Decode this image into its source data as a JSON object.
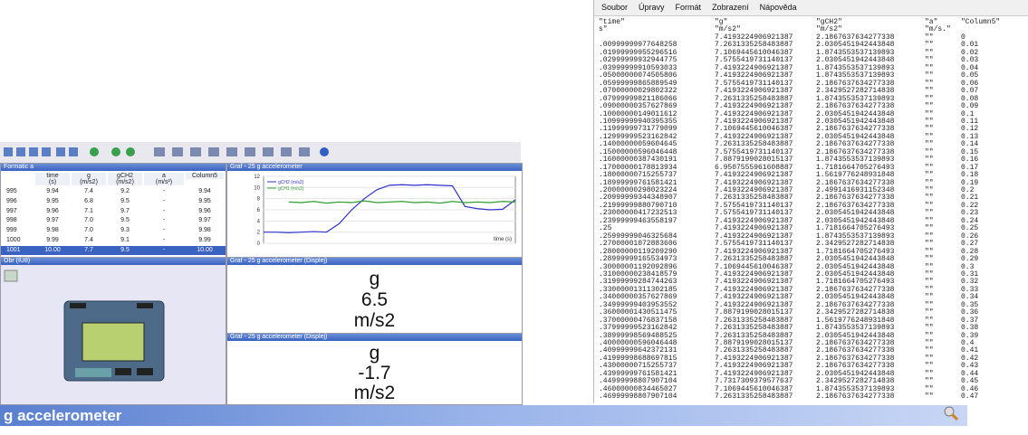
{
  "editor": {
    "menu": [
      "Soubor",
      "Úpravy",
      "Formát",
      "Zobrazení",
      "Nápověda"
    ],
    "header": [
      "\"time\"",
      "\"g\"",
      "\"gCH2\"",
      "\"a\"",
      "\"Column5\""
    ],
    "units": [
      "s\"",
      "\"m/s2\"",
      "\"m/s2\"",
      "\"m/s.\"",
      ""
    ],
    "rows": [
      [
        "",
        "7.4193224906921387",
        "2.1867637634277338",
        "\"\"",
        "0"
      ],
      [
        ".00999999977648258",
        "7.2631335258483887",
        "2.0305451942443848",
        "\"\"",
        "0.01"
      ],
      [
        ".01999999955296516",
        "7.1069445610046387",
        "1.8743553537139893",
        "\"\"",
        "0.02"
      ],
      [
        ".02999999932944775",
        "7.5755419731140137",
        "2.0305451942443848",
        "\"\"",
        "0.03"
      ],
      [
        ".03999999910593033",
        "7.4193224906921387",
        "1.8743553537139893",
        "\"\"",
        "0.04"
      ],
      [
        ".05000000074505806",
        "7.4193224906921387",
        "1.8743553537139893",
        "\"\"",
        "0.05"
      ],
      [
        ".05999999865889549",
        "7.5755419731140137",
        "2.1867637634277338",
        "\"\"",
        "0.06"
      ],
      [
        ".07000000029802322",
        "7.4193224906921387",
        "2.3429527282714838",
        "\"\"",
        "0.07"
      ],
      [
        ".07999999821186066",
        "7.2631335258483887",
        "1.8743553537139893",
        "\"\"",
        "0.08"
      ],
      [
        ".09000000357627869",
        "7.4193224906921387",
        "2.1867637634277338",
        "\"\"",
        "0.09"
      ],
      [
        ".10000000149011612",
        "7.4193224906921387",
        "2.0305451942443848",
        "\"\"",
        "0.1"
      ],
      [
        ".10999999940395355",
        "7.4193224906921387",
        "2.0305451942443848",
        "\"\"",
        "0.11"
      ],
      [
        ".11999999731779099",
        "7.1069445610046387",
        "2.1867637634277338",
        "\"\"",
        "0.12"
      ],
      [
        ".12999999523162842",
        "7.4193224906921387",
        "2.0305451942443848",
        "\"\"",
        "0.13"
      ],
      [
        ".14000000059604645",
        "7.2631335258483887",
        "2.1867637634277338",
        "\"\"",
        "0.14"
      ],
      [
        ".15000000596046448",
        "7.5755419731140137",
        "2.1867637634277338",
        "\"\"",
        "0.15"
      ],
      [
        ".16000000387430191",
        "7.8879199028015137",
        "1.8743553537139893",
        "\"\"",
        "0.16"
      ],
      [
        ".17000000178813934",
        "6.9507555961608887",
        "1.7181664705276493",
        "\"\"",
        "0.17"
      ],
      [
        ".18000000715255737",
        "7.4193224906921387",
        "1.5619776248931848",
        "\"\"",
        "0.18"
      ],
      [
        ".18999999761581421",
        "7.4193224906921387",
        "2.1867637634277338",
        "\"\"",
        "0.19"
      ],
      [
        ".20000000298023224",
        "7.4193224906921387",
        "2.4991416931152348",
        "\"\"",
        "0.2"
      ],
      [
        ".20999999344348907",
        "7.2631335258483887",
        "2.1867637634277338",
        "\"\"",
        "0.21"
      ],
      [
        ".21999999880790710",
        "7.5755419731140137",
        "2.1867637634277338",
        "\"\"",
        "0.22"
      ],
      [
        ".23000000417232513",
        "7.5755419731140137",
        "2.0305451942443848",
        "\"\"",
        "0.23"
      ],
      [
        ".23999999463558197",
        "7.4193224906921387",
        "2.0305451942443848",
        "\"\"",
        "0.24"
      ],
      [
        ".25",
        "7.4193224906921387",
        "1.7181664705276493",
        "\"\"",
        "0.25"
      ],
      [
        ".25999999046325684",
        "7.4193224906921387",
        "1.8743553537139893",
        "\"\"",
        "0.26"
      ],
      [
        ".27000001072883606",
        "7.5755419731140137",
        "2.3429527282714838",
        "\"\"",
        "0.27"
      ],
      [
        ".28000000119209290",
        "7.4193224906921387",
        "1.7181664705276493",
        "\"\"",
        "0.28"
      ],
      [
        ".28999999165534973",
        "7.2631335258483887",
        "2.0305451942443848",
        "\"\"",
        "0.29"
      ],
      [
        ".30000001192092896",
        "7.1069445610046387",
        "2.0305451942443848",
        "\"\"",
        "0.3"
      ],
      [
        ".31000000238418579",
        "7.4193224906921387",
        "2.0305451942443848",
        "\"\"",
        "0.31"
      ],
      [
        ".31999999284744263",
        "7.4193224906921387",
        "1.7181664705276493",
        "\"\"",
        "0.32"
      ],
      [
        ".33000001311302185",
        "7.4193224906921387",
        "2.1867637634277338",
        "\"\"",
        "0.33"
      ],
      [
        ".34000000357627869",
        "7.4193224906921387",
        "2.0305451942443848",
        "\"\"",
        "0.34"
      ],
      [
        ".34999999403953552",
        "7.4193224906921387",
        "2.1867637634277338",
        "\"\"",
        "0.35"
      ],
      [
        ".36000001430511475",
        "7.8879199028015137",
        "2.3429527282714838",
        "\"\"",
        "0.36"
      ],
      [
        ".37000000476837158",
        "7.2631335258483887",
        "1.5619776248931848",
        "\"\"",
        "0.37"
      ],
      [
        ".37999999523162842",
        "7.2631335258483887",
        "1.8743553537139893",
        "\"\"",
        "0.38"
      ],
      [
        ".38999998569488525",
        "7.2631335258483887",
        "2.0305451942443848",
        "\"\"",
        "0.39"
      ],
      [
        ".40000000596046448",
        "7.8879199028015137",
        "2.1867637634277338",
        "\"\"",
        "0.4"
      ],
      [
        ".40999999642372131",
        "7.2631335258483887",
        "2.1867637634277338",
        "\"\"",
        "0.41"
      ],
      [
        ".41999998688697815",
        "7.4193224906921387",
        "2.1867637634277338",
        "\"\"",
        "0.42"
      ],
      [
        ".43000000715255737",
        "7.4193224906921387",
        "2.1867637634277338",
        "\"\"",
        "0.43"
      ],
      [
        ".43999999761581421",
        "7.4193224906921387",
        "2.0305451942443848",
        "\"\"",
        "0.44"
      ],
      [
        ".44999998807907104",
        "7.7317309379577637",
        "2.3429527282714838",
        "\"\"",
        "0.45"
      ],
      [
        ".46000000834465027",
        "7.1069445610046387",
        "1.8743553537139893",
        "\"\"",
        "0.46"
      ],
      [
        ".46999998807907104",
        "7.2631335258483887",
        "2.1867637634277338",
        "\"\"",
        "0.47"
      ]
    ]
  },
  "table": {
    "title": "Formatic a",
    "columns": [
      "",
      "time\n(s)",
      "g\n(m/s2)",
      "gCH2\n(m/s2)",
      "a\n(m/s²)",
      "Column5"
    ],
    "rows": [
      [
        "995",
        "9.94",
        "7.4",
        "9.2",
        "-",
        "9.94"
      ],
      [
        "996",
        "9.95",
        "6.8",
        "9.5",
        "-",
        "9.95"
      ],
      [
        "997",
        "9.96",
        "7.1",
        "9.7",
        "-",
        "9.96"
      ],
      [
        "998",
        "9.97",
        "7.0",
        "9.5",
        "-",
        "9.97"
      ],
      [
        "999",
        "9.98",
        "7.0",
        "9.3",
        "-",
        "9.98"
      ],
      [
        "1000",
        "9.99",
        "7.4",
        "9.1",
        "-",
        "9.99"
      ],
      [
        "1001",
        "10.00",
        "7.7",
        "9.5",
        "-",
        "10.00"
      ]
    ]
  },
  "graph": {
    "title": "Graf - 25 g accelerometer",
    "x_label": "time (s)",
    "xlim": [
      0,
      10
    ],
    "ylim": [
      0,
      12
    ],
    "yticks": [
      0,
      2,
      4,
      6,
      8,
      10,
      12
    ],
    "x": [
      0,
      0.5,
      1,
      1.5,
      2,
      2.5,
      3,
      3.5,
      4,
      4.5,
      5,
      5.5,
      6,
      6.5,
      7,
      7.5,
      8,
      8.5,
      9,
      9.5,
      10
    ],
    "series": [
      {
        "name": "gCH2 (m/s2)",
        "color": "#3030d0",
        "values": [
          2.0,
          2.0,
          1.9,
          2.0,
          2.1,
          2.0,
          3.5,
          6.0,
          8.0,
          9.6,
          10.4,
          10.5,
          10.4,
          10.5,
          10.4,
          10.3,
          6.6,
          6.2,
          6.0,
          6.1,
          7.8
        ]
      },
      {
        "name": "gCH1 (m/s2)",
        "color": "#2f9f2f",
        "values": [
          null,
          null,
          7.4,
          7.3,
          7.5,
          7.2,
          7.4,
          7.3,
          7.6,
          7.3,
          7.4,
          7.5,
          7.3,
          7.4,
          7.2,
          7.5,
          7.3,
          7.4,
          7.3,
          7.5,
          7.4
        ]
      }
    ]
  },
  "device": {
    "title": "Obr (IU8)"
  },
  "meters": [
    {
      "title": "Graf - 25 g accelerometer (Displej)",
      "name": "g",
      "value": "6.5",
      "unit": "m/s2"
    },
    {
      "title": "Graf - 25 g accelerometer (Displej)",
      "name": "g",
      "value": "-1.7",
      "unit": "m/s2"
    }
  ],
  "bottom_bar": {
    "label": "g accelerometer"
  }
}
